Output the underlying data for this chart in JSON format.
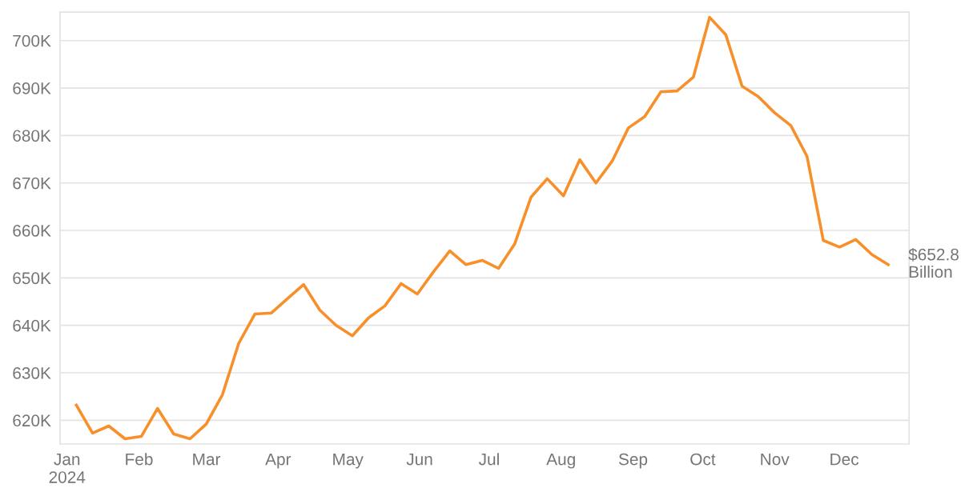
{
  "chart_data": {
    "type": "line",
    "x": [
      "2024-01-05",
      "2024-01-12",
      "2024-01-19",
      "2024-01-26",
      "2024-02-02",
      "2024-02-09",
      "2024-02-16",
      "2024-02-23",
      "2024-03-01",
      "2024-03-08",
      "2024-03-15",
      "2024-03-22",
      "2024-03-29",
      "2024-04-05",
      "2024-04-12",
      "2024-04-19",
      "2024-04-26",
      "2024-05-03",
      "2024-05-10",
      "2024-05-17",
      "2024-05-24",
      "2024-05-31",
      "2024-06-07",
      "2024-06-14",
      "2024-06-21",
      "2024-06-28",
      "2024-07-05",
      "2024-07-12",
      "2024-07-19",
      "2024-07-26",
      "2024-08-02",
      "2024-08-09",
      "2024-08-16",
      "2024-08-23",
      "2024-08-30",
      "2024-09-06",
      "2024-09-13",
      "2024-09-20",
      "2024-09-27",
      "2024-10-04",
      "2024-10-11",
      "2024-10-18",
      "2024-10-25",
      "2024-11-01",
      "2024-11-08",
      "2024-11-15",
      "2024-11-22",
      "2024-11-29",
      "2024-12-06",
      "2024-12-13",
      "2024-12-20"
    ],
    "series": [
      {
        "color": "#f78f2b",
        "values": [
          623.2,
          617.3,
          618.8,
          616.1,
          616.6,
          622.5,
          617.1,
          616.1,
          619.2,
          625.4,
          636.2,
          642.4,
          642.6,
          645.6,
          648.6,
          643.2,
          640.0,
          637.8,
          641.6,
          644.1,
          648.8,
          646.6,
          651.3,
          655.7,
          652.8,
          653.7,
          652.0,
          657.2,
          667.0,
          670.9,
          667.3,
          674.9,
          670.0,
          674.6,
          681.6,
          684.0,
          689.2,
          689.4,
          692.3,
          704.9,
          701.2,
          690.4,
          688.2,
          684.8,
          682.1,
          675.6,
          657.9,
          656.5,
          658.1,
          654.9,
          652.8
        ]
      }
    ],
    "xlim": [
      "2023-12-29",
      "2024-12-29"
    ],
    "xticks": [
      {
        "value": "2024-01-01",
        "label": "Jan\n2024"
      },
      {
        "value": "2024-02-01",
        "label": "Feb"
      },
      {
        "value": "2024-03-01",
        "label": "Mar"
      },
      {
        "value": "2024-04-01",
        "label": "Apr"
      },
      {
        "value": "2024-05-01",
        "label": "May"
      },
      {
        "value": "2024-06-01",
        "label": "Jun"
      },
      {
        "value": "2024-07-01",
        "label": "Jul"
      },
      {
        "value": "2024-08-01",
        "label": "Aug"
      },
      {
        "value": "2024-09-01",
        "label": "Sep"
      },
      {
        "value": "2024-10-01",
        "label": "Oct"
      },
      {
        "value": "2024-11-01",
        "label": "Nov"
      },
      {
        "value": "2024-12-01",
        "label": "Dec"
      }
    ],
    "ylim": [
      615,
      706
    ],
    "yticks": [
      {
        "value": 620,
        "label": "620K"
      },
      {
        "value": 630,
        "label": "630K"
      },
      {
        "value": 640,
        "label": "640K"
      },
      {
        "value": 650,
        "label": "650K"
      },
      {
        "value": 660,
        "label": "660K"
      },
      {
        "value": 670,
        "label": "670K"
      },
      {
        "value": 680,
        "label": "680K"
      },
      {
        "value": 690,
        "label": "690K"
      },
      {
        "value": 700,
        "label": "700K"
      }
    ],
    "grid": "y",
    "marker": "none",
    "line_style": "solid",
    "annotations": [
      {
        "text": "$652.8\nBillion",
        "x": "2024-12-20",
        "y": 652.8
      }
    ]
  }
}
